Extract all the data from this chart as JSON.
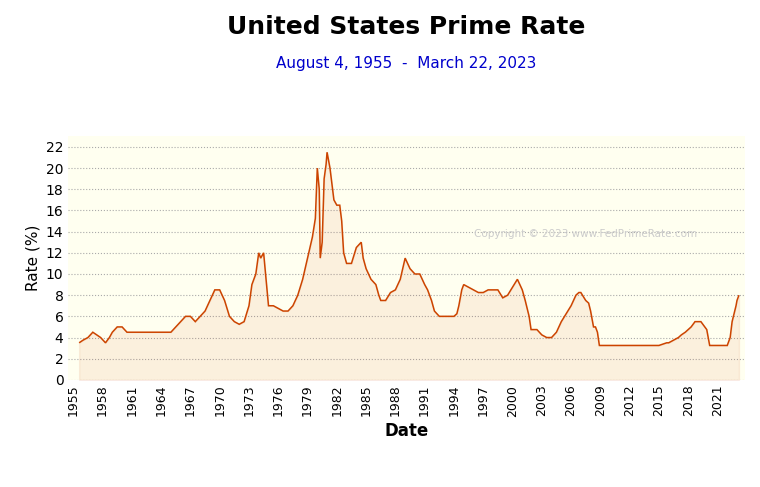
{
  "title": "United States Prime Rate",
  "subtitle": "August 4, 1955  -  March 22, 2023",
  "xlabel": "Date",
  "ylabel": "Rate (%)",
  "title_fontsize": 18,
  "subtitle_fontsize": 11,
  "xlabel_fontsize": 12,
  "ylabel_fontsize": 11,
  "line_color": "#cc4400",
  "fill_color": "#cc4400",
  "fill_alpha": 0.08,
  "bg_color": "#ffffff",
  "plot_bg_color": "#fffff0",
  "grid_color": "#aaaaaa",
  "subtitle_color": "#0000cc",
  "copyright_text": "Copyright © 2023 www.FedPrimeRate.com",
  "copyright_color": "#cccccc",
  "ylim": [
    0,
    23
  ],
  "yticks": [
    0,
    2,
    4,
    6,
    8,
    10,
    12,
    14,
    16,
    18,
    20,
    22
  ],
  "xlim": [
    1954.5,
    2023.8
  ],
  "xtick_years": [
    1955,
    1958,
    1961,
    1964,
    1967,
    1970,
    1973,
    1976,
    1979,
    1982,
    1985,
    1988,
    1991,
    1994,
    1997,
    2000,
    2003,
    2006,
    2009,
    2012,
    2015,
    2018,
    2021
  ],
  "data": [
    [
      1955.6,
      3.5
    ],
    [
      1956.0,
      3.75
    ],
    [
      1956.5,
      4.0
    ],
    [
      1957.0,
      4.5
    ],
    [
      1957.8,
      4.0
    ],
    [
      1958.3,
      3.5
    ],
    [
      1958.7,
      4.0
    ],
    [
      1959.0,
      4.5
    ],
    [
      1959.5,
      5.0
    ],
    [
      1960.0,
      5.0
    ],
    [
      1960.5,
      4.5
    ],
    [
      1961.0,
      4.5
    ],
    [
      1962.0,
      4.5
    ],
    [
      1963.0,
      4.5
    ],
    [
      1964.0,
      4.5
    ],
    [
      1965.0,
      4.5
    ],
    [
      1965.5,
      5.0
    ],
    [
      1966.0,
      5.5
    ],
    [
      1966.5,
      6.0
    ],
    [
      1967.0,
      6.0
    ],
    [
      1967.5,
      5.5
    ],
    [
      1968.0,
      6.0
    ],
    [
      1968.5,
      6.5
    ],
    [
      1969.0,
      7.5
    ],
    [
      1969.5,
      8.5
    ],
    [
      1970.0,
      8.5
    ],
    [
      1970.5,
      7.5
    ],
    [
      1971.0,
      6.0
    ],
    [
      1971.5,
      5.5
    ],
    [
      1972.0,
      5.25
    ],
    [
      1972.5,
      5.5
    ],
    [
      1973.0,
      7.0
    ],
    [
      1973.3,
      9.0
    ],
    [
      1973.7,
      10.0
    ],
    [
      1974.0,
      12.0
    ],
    [
      1974.2,
      11.5
    ],
    [
      1974.5,
      12.0
    ],
    [
      1974.7,
      10.0
    ],
    [
      1975.0,
      7.0
    ],
    [
      1975.5,
      7.0
    ],
    [
      1976.0,
      6.75
    ],
    [
      1976.5,
      6.5
    ],
    [
      1977.0,
      6.5
    ],
    [
      1977.5,
      7.0
    ],
    [
      1978.0,
      8.0
    ],
    [
      1978.5,
      9.5
    ],
    [
      1979.0,
      11.5
    ],
    [
      1979.5,
      13.5
    ],
    [
      1979.8,
      15.25
    ],
    [
      1980.0,
      20.0
    ],
    [
      1980.2,
      18.0
    ],
    [
      1980.3,
      11.5
    ],
    [
      1980.5,
      13.0
    ],
    [
      1980.7,
      19.0
    ],
    [
      1980.9,
      20.35
    ],
    [
      1981.0,
      21.5
    ],
    [
      1981.3,
      20.0
    ],
    [
      1981.5,
      18.5
    ],
    [
      1981.7,
      17.0
    ],
    [
      1982.0,
      16.5
    ],
    [
      1982.3,
      16.5
    ],
    [
      1982.5,
      15.0
    ],
    [
      1982.7,
      12.0
    ],
    [
      1983.0,
      11.0
    ],
    [
      1983.5,
      11.0
    ],
    [
      1984.0,
      12.5
    ],
    [
      1984.5,
      13.0
    ],
    [
      1984.7,
      11.5
    ],
    [
      1985.0,
      10.5
    ],
    [
      1985.5,
      9.5
    ],
    [
      1986.0,
      9.0
    ],
    [
      1986.3,
      8.0
    ],
    [
      1986.5,
      7.5
    ],
    [
      1987.0,
      7.5
    ],
    [
      1987.5,
      8.25
    ],
    [
      1988.0,
      8.5
    ],
    [
      1988.5,
      9.5
    ],
    [
      1989.0,
      11.5
    ],
    [
      1989.5,
      10.5
    ],
    [
      1990.0,
      10.0
    ],
    [
      1990.5,
      10.0
    ],
    [
      1991.0,
      9.0
    ],
    [
      1991.3,
      8.5
    ],
    [
      1991.5,
      8.0
    ],
    [
      1991.7,
      7.5
    ],
    [
      1992.0,
      6.5
    ],
    [
      1992.5,
      6.0
    ],
    [
      1993.0,
      6.0
    ],
    [
      1993.5,
      6.0
    ],
    [
      1994.0,
      6.0
    ],
    [
      1994.3,
      6.25
    ],
    [
      1994.5,
      7.0
    ],
    [
      1994.8,
      8.5
    ],
    [
      1995.0,
      9.0
    ],
    [
      1995.5,
      8.75
    ],
    [
      1996.0,
      8.5
    ],
    [
      1996.5,
      8.25
    ],
    [
      1997.0,
      8.25
    ],
    [
      1997.5,
      8.5
    ],
    [
      1998.0,
      8.5
    ],
    [
      1998.5,
      8.5
    ],
    [
      1999.0,
      7.75
    ],
    [
      1999.5,
      8.0
    ],
    [
      2000.0,
      8.75
    ],
    [
      2000.5,
      9.5
    ],
    [
      2001.0,
      8.5
    ],
    [
      2001.3,
      7.5
    ],
    [
      2001.5,
      6.75
    ],
    [
      2001.7,
      6.0
    ],
    [
      2001.9,
      4.75
    ],
    [
      2002.0,
      4.75
    ],
    [
      2002.5,
      4.75
    ],
    [
      2003.0,
      4.25
    ],
    [
      2003.5,
      4.0
    ],
    [
      2004.0,
      4.0
    ],
    [
      2004.5,
      4.5
    ],
    [
      2005.0,
      5.5
    ],
    [
      2005.5,
      6.25
    ],
    [
      2006.0,
      7.0
    ],
    [
      2006.5,
      8.0
    ],
    [
      2006.8,
      8.25
    ],
    [
      2007.0,
      8.25
    ],
    [
      2007.5,
      7.5
    ],
    [
      2007.8,
      7.25
    ],
    [
      2008.0,
      6.5
    ],
    [
      2008.3,
      5.0
    ],
    [
      2008.5,
      5.0
    ],
    [
      2008.7,
      4.5
    ],
    [
      2008.9,
      3.25
    ],
    [
      2009.0,
      3.25
    ],
    [
      2009.5,
      3.25
    ],
    [
      2010.0,
      3.25
    ],
    [
      2010.5,
      3.25
    ],
    [
      2011.0,
      3.25
    ],
    [
      2011.5,
      3.25
    ],
    [
      2012.0,
      3.25
    ],
    [
      2012.5,
      3.25
    ],
    [
      2013.0,
      3.25
    ],
    [
      2013.5,
      3.25
    ],
    [
      2014.0,
      3.25
    ],
    [
      2014.5,
      3.25
    ],
    [
      2015.0,
      3.25
    ],
    [
      2015.8,
      3.5
    ],
    [
      2016.0,
      3.5
    ],
    [
      2016.5,
      3.75
    ],
    [
      2017.0,
      4.0
    ],
    [
      2017.3,
      4.25
    ],
    [
      2017.7,
      4.5
    ],
    [
      2018.0,
      4.75
    ],
    [
      2018.3,
      5.0
    ],
    [
      2018.5,
      5.25
    ],
    [
      2018.7,
      5.5
    ],
    [
      2019.0,
      5.5
    ],
    [
      2019.3,
      5.5
    ],
    [
      2019.5,
      5.25
    ],
    [
      2019.7,
      5.0
    ],
    [
      2019.9,
      4.75
    ],
    [
      2020.0,
      4.25
    ],
    [
      2020.2,
      3.25
    ],
    [
      2020.5,
      3.25
    ],
    [
      2021.0,
      3.25
    ],
    [
      2021.5,
      3.25
    ],
    [
      2022.0,
      3.25
    ],
    [
      2022.3,
      4.0
    ],
    [
      2022.5,
      5.5
    ],
    [
      2022.7,
      6.25
    ],
    [
      2022.9,
      7.0
    ],
    [
      2023.0,
      7.5
    ],
    [
      2023.2,
      8.0
    ]
  ]
}
